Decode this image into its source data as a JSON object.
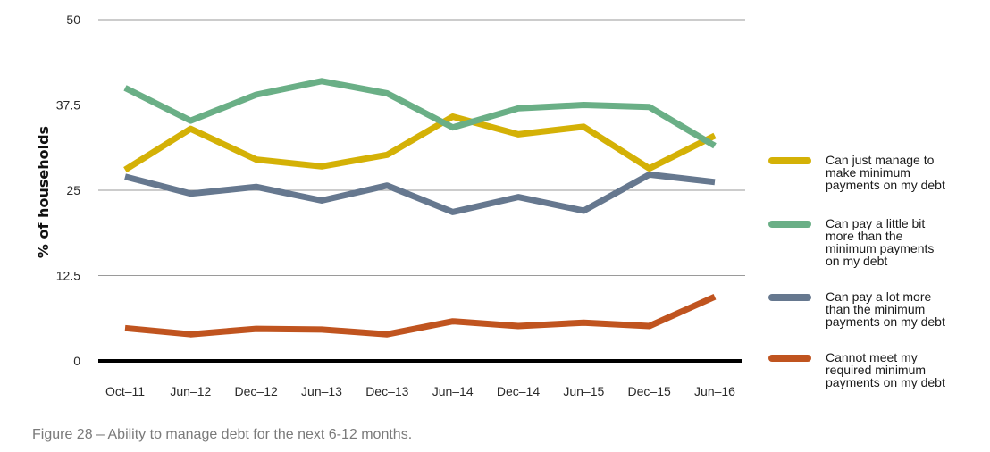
{
  "caption": "Figure 28 – Ability to manage debt for the next 6-12 months.",
  "chart_data": {
    "type": "line",
    "title": "",
    "xlabel": "",
    "ylabel": "% of households",
    "ylim": [
      0,
      50
    ],
    "yticks": [
      "0",
      "12.5",
      "25",
      "37.5",
      "50"
    ],
    "grid": true,
    "legend_position": "right",
    "categories": [
      "Oct–11",
      "Jun–12",
      "Dec–12",
      "Jun–13",
      "Dec–13",
      "Jun–14",
      "Dec–14",
      "Jun–15",
      "Dec–15",
      "Jun–16"
    ],
    "series": [
      {
        "name": "Can just manage to\nmake minimum\npayments on my debt",
        "color": "#d4b106",
        "values": [
          28,
          34,
          29.5,
          28.5,
          30.2,
          35.8,
          33.2,
          34.3,
          28.2,
          33
        ]
      },
      {
        "name": "Can pay a little bit\nmore than the\nminimum payments\non my debt",
        "color": "#6aaf86",
        "values": [
          40,
          35.2,
          39,
          41,
          39.2,
          34.2,
          37,
          37.5,
          37.2,
          31.5
        ]
      },
      {
        "name": "Can pay a lot more\nthan the minimum\npayments on my debt",
        "color": "#66788f",
        "values": [
          27,
          24.5,
          25.5,
          23.5,
          25.7,
          21.8,
          24,
          22,
          27.3,
          26.2
        ]
      },
      {
        "name": "Cannot meet my\nrequired minimum\npayments on my debt",
        "color": "#c0541f",
        "values": [
          4.8,
          3.9,
          4.7,
          4.6,
          3.9,
          5.8,
          5.1,
          5.6,
          5.1,
          9.4
        ]
      }
    ]
  }
}
